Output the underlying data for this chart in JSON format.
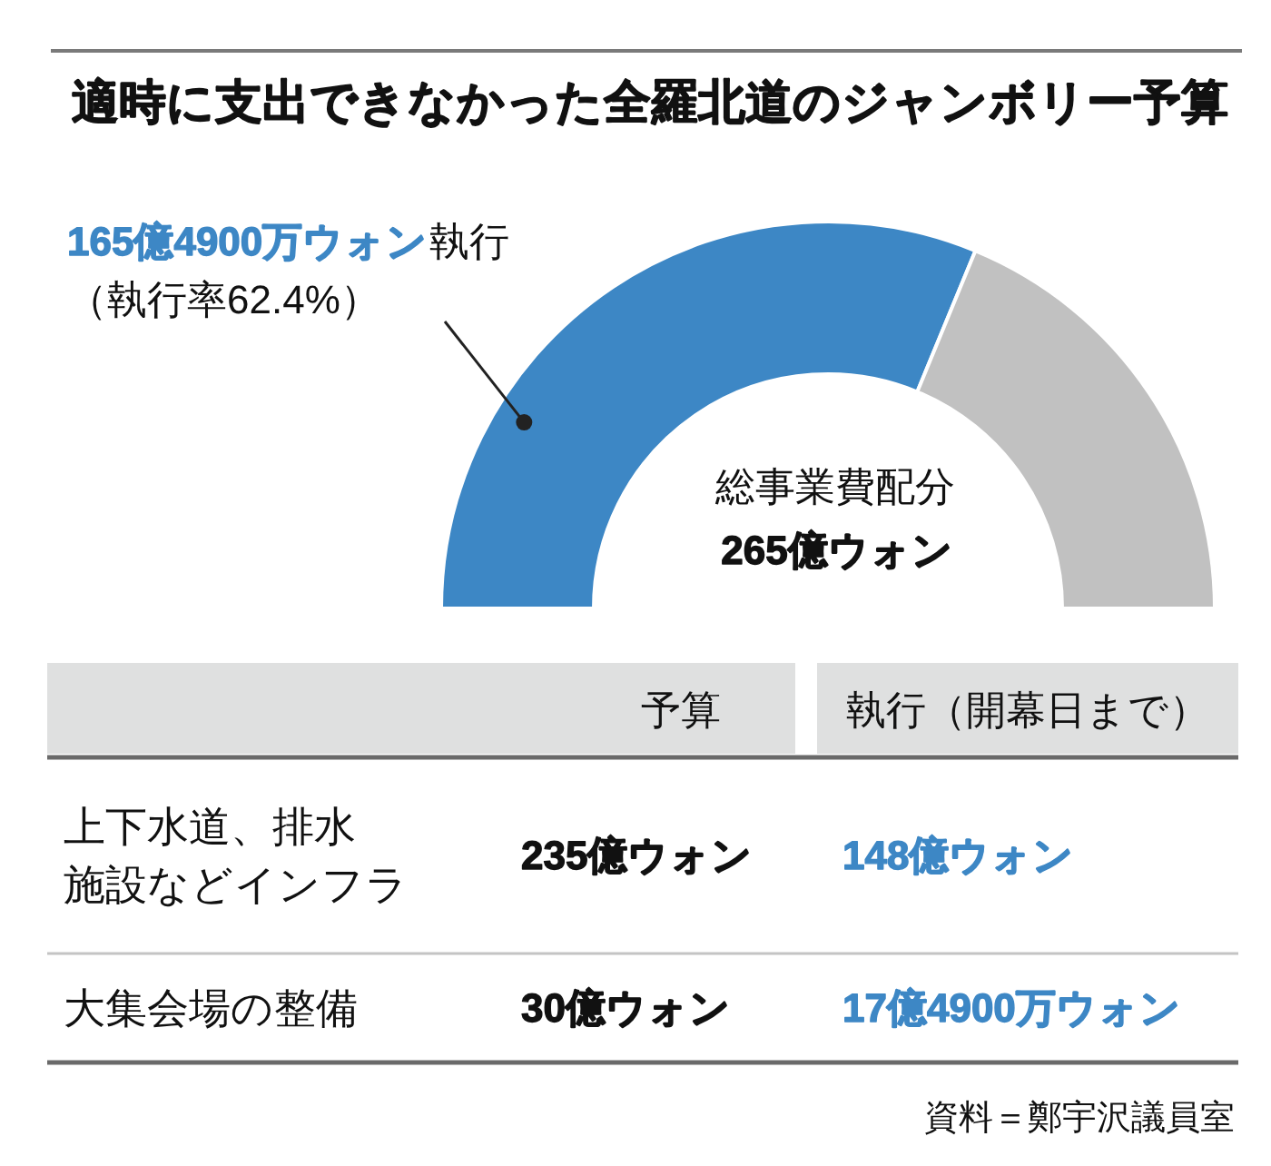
{
  "chart_data": [
    {
      "type": "donut",
      "title": "適時に支出できなかった全羅北道のジャンボリー予算",
      "categories": [
        "執行",
        null
      ],
      "values": [
        165.49,
        99.51
      ],
      "colors": [
        "#3d87c5",
        "#c1c1c1"
      ],
      "value_labels": [
        "165億4900万ウォン",
        null
      ],
      "annotations": [
        "（執行率62.4%）",
        "総事業費配分",
        "265億ウォン"
      ]
    },
    {
      "type": "other",
      "annotations": [
        "予算",
        "執行（開幕日まで）",
        "上下水道、排水施設などインフラ",
        "235億ウォン",
        "148億ウォン",
        "大集会場の整備",
        "30億ウォン",
        "17億4900万ウォン",
        "資料＝鄭宇沢議員室"
      ]
    }
  ]
}
